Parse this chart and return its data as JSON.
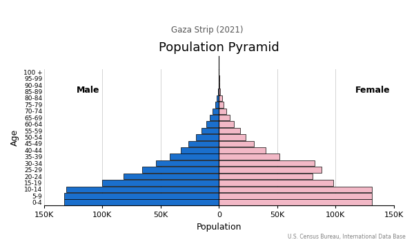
{
  "title": "Population Pyramid",
  "subtitle": "Gaza Strip (2021)",
  "source": "U.S. Census Bureau, International Data Base",
  "xlabel": "Population",
  "ylabel": "Age",
  "age_groups": [
    "0-4",
    "5-9",
    "10-14",
    "15-19",
    "20-24",
    "25-29",
    "30-34",
    "35-39",
    "40-44",
    "45-49",
    "50-54",
    "55-59",
    "60-64",
    "65-69",
    "70-74",
    "75-79",
    "80-84",
    "85-89",
    "90-94",
    "95-99",
    "100 +"
  ],
  "male": [
    133000,
    133000,
    131000,
    100000,
    82000,
    66000,
    54000,
    42000,
    33000,
    26000,
    20000,
    15000,
    11000,
    8000,
    5500,
    3500,
    2200,
    1100,
    350,
    80,
    15
  ],
  "female": [
    131000,
    131000,
    131000,
    98000,
    80000,
    88000,
    82000,
    52000,
    40000,
    30000,
    23000,
    18000,
    13000,
    9000,
    6000,
    4000,
    2500,
    1200,
    380,
    80,
    15
  ],
  "male_color": "#1a6fcd",
  "female_color": "#f2b8c6",
  "xlim": 150000,
  "bar_edge_color": "black",
  "bar_linewidth": 0.5,
  "male_label": "Male",
  "female_label": "Female",
  "grid_color": "#cccccc",
  "tick_vals": [
    -150000,
    -100000,
    -50000,
    0,
    50000,
    100000,
    150000
  ],
  "tick_labels": [
    "150K",
    "100K",
    "50K",
    "0",
    "50K",
    "100K",
    "150K"
  ]
}
